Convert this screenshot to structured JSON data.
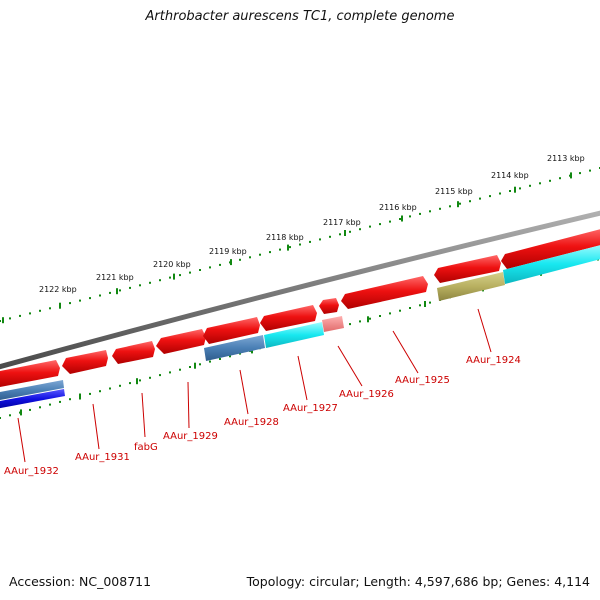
{
  "title": "Arthrobacter aurescens TC1, complete genome",
  "accession": "Accession: NC_008711",
  "summary": "Topology: circular; Length: 4,597,686 bp; Genes: 4,114",
  "colors": {
    "forward_gene": "#ee1111",
    "forward_gene_light": "#f08080",
    "reverse_cyan": "#18e8f0",
    "reverse_steel": "#4a7fb5",
    "reverse_blue": "#1010e0",
    "reverse_olive": "#b8b060",
    "backbone": "#808080",
    "ticks": "#118811",
    "labels": "#cc0000"
  },
  "kbp_labels": [
    "2113 kbp",
    "2114 kbp",
    "2115 kbp",
    "2116 kbp",
    "2117 kbp",
    "2118 kbp",
    "2119 kbp",
    "2120 kbp",
    "2121 kbp",
    "2122 kbp"
  ],
  "gene_labels": [
    "AAur_1924",
    "AAur_1925",
    "AAur_1926",
    "AAur_1927",
    "AAur_1928",
    "AAur_1929",
    "fabG",
    "AAur_1931",
    "AAur_1932"
  ]
}
